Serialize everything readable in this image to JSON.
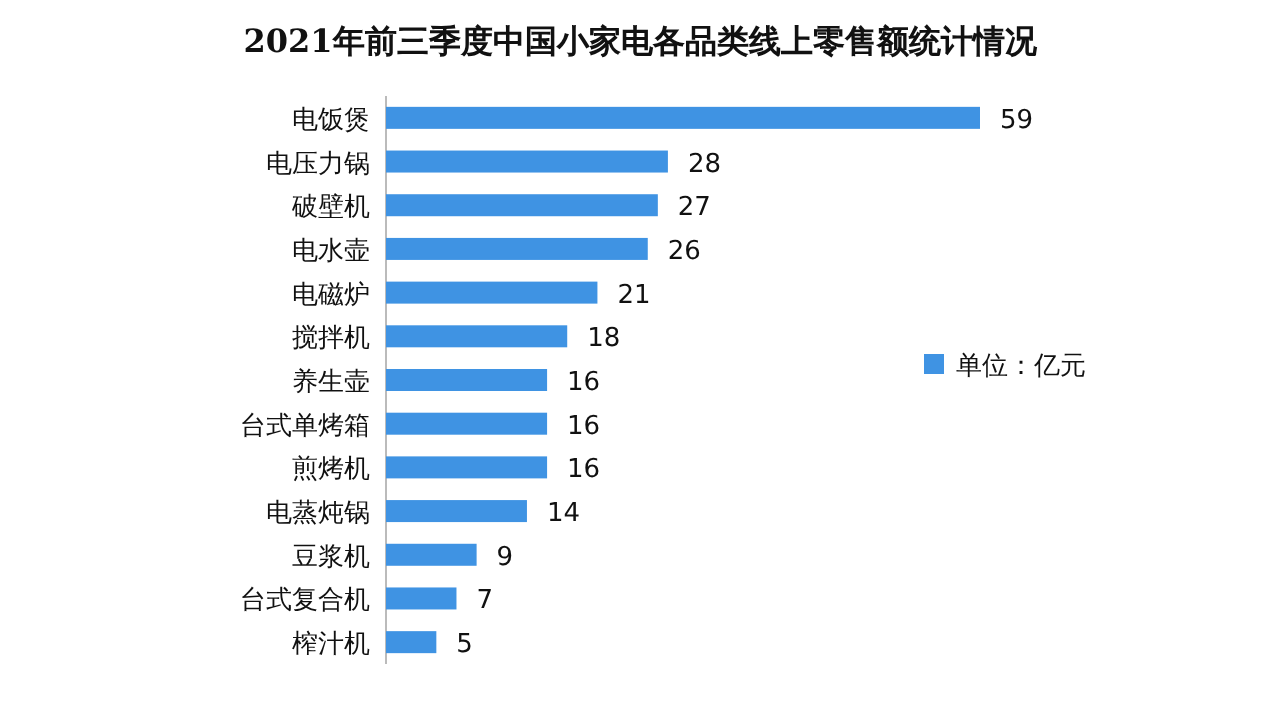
{
  "chart_data": {
    "type": "bar",
    "orientation": "horizontal",
    "title": "2021年前三季度中国小家电各品类线上零售额统计情况",
    "categories": [
      "电饭煲",
      "电压力锅",
      "破壁机",
      "电水壶",
      "电磁炉",
      "搅拌机",
      "养生壶",
      "台式单烤箱",
      "煎烤机",
      "电蒸炖锅",
      "豆浆机",
      "台式复合机",
      "榨汁机"
    ],
    "series": [
      {
        "name": "单位：亿元",
        "color": "#3f93e3",
        "values": [
          59,
          28,
          27,
          26,
          21,
          18,
          16,
          16,
          16,
          14,
          9,
          7,
          5
        ]
      }
    ],
    "data_labels": true,
    "legend": "right"
  }
}
